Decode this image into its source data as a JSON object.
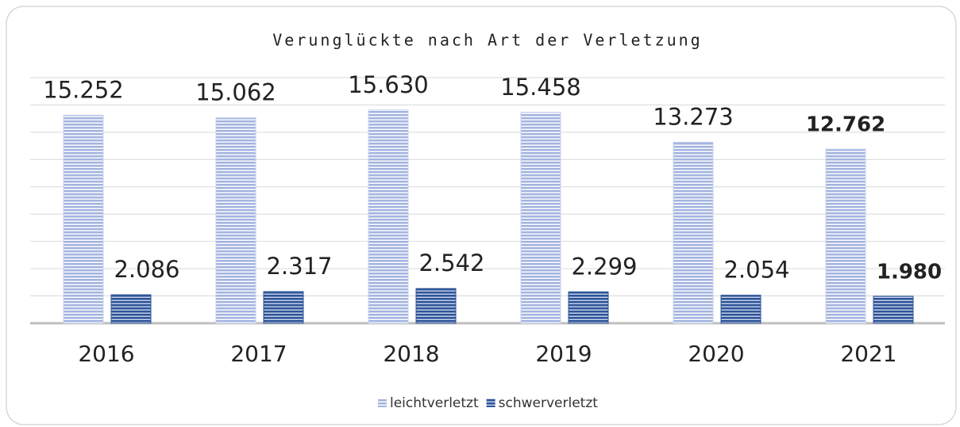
{
  "chart_data": {
    "type": "bar",
    "title": "Verunglückte nach Art der Verletzung",
    "categories": [
      "2016",
      "2017",
      "2018",
      "2019",
      "2020",
      "2021"
    ],
    "series": [
      {
        "name": "leichtverletzt",
        "color": "#a3b4e0",
        "values": [
          15252,
          15062,
          15630,
          15458,
          13273,
          12762
        ],
        "value_labels": [
          "15.252",
          "15.062",
          "15.630",
          "15.458",
          "13.273",
          "12.762"
        ]
      },
      {
        "name": "schwerverletzt",
        "color": "#2f5597",
        "values": [
          2086,
          2317,
          2542,
          2299,
          2054,
          1980
        ],
        "value_labels": [
          "2.086",
          "2.317",
          "2.542",
          "2.299",
          "2.054",
          "1.980"
        ]
      }
    ],
    "ylim": [
      0,
      18000
    ],
    "yticks": [
      0,
      2000,
      4000,
      6000,
      8000,
      10000,
      12000,
      14000,
      16000,
      18000
    ],
    "grid": true,
    "legend": "bottom"
  }
}
